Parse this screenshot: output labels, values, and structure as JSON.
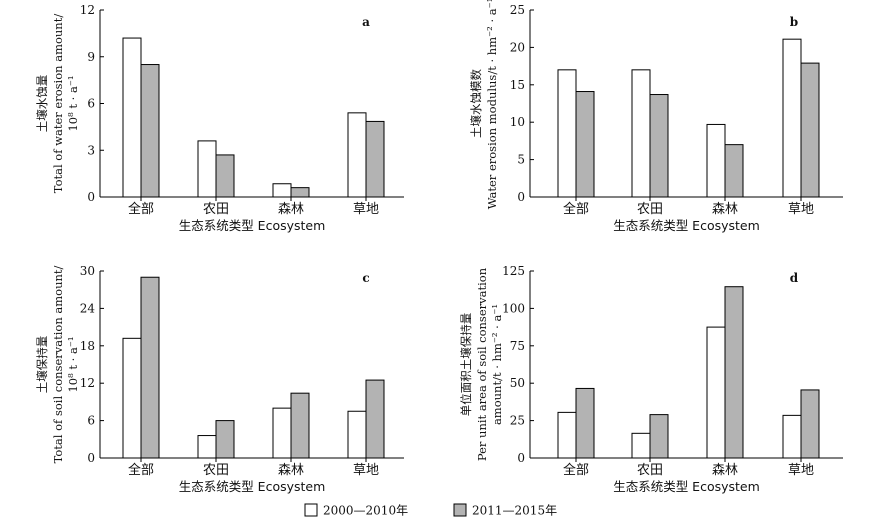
{
  "legend": [
    {
      "label": "2000—2010年",
      "color": "#ffffff"
    },
    {
      "label": "2011—2015年",
      "color": "#b3b3b3"
    }
  ],
  "chart_data": [
    {
      "type": "bar",
      "panel_label": "a",
      "categories": [
        "全部",
        "农田",
        "森林",
        "草地"
      ],
      "series": [
        {
          "name": "2000—2010年",
          "values": [
            10.2,
            3.6,
            0.85,
            5.4
          ]
        },
        {
          "name": "2011—2015年",
          "values": [
            8.5,
            2.7,
            0.6,
            4.85
          ]
        }
      ],
      "ylim": [
        0,
        12
      ],
      "yticks": [
        0,
        3,
        6,
        9,
        12
      ],
      "ylabel_lines": [
        "土壤水蚀量",
        "Total of water erosion amount/",
        "10⁸ t · a⁻¹"
      ],
      "xlabel": "生态系统类型 Ecosystem"
    },
    {
      "type": "bar",
      "panel_label": "b",
      "categories": [
        "全部",
        "农田",
        "森林",
        "草地"
      ],
      "series": [
        {
          "name": "2000—2010年",
          "values": [
            17.0,
            17.0,
            9.7,
            21.1
          ]
        },
        {
          "name": "2011—2015年",
          "values": [
            14.1,
            13.7,
            7.0,
            17.9
          ]
        }
      ],
      "ylim": [
        0,
        25
      ],
      "yticks": [
        0,
        5,
        10,
        15,
        20,
        25
      ],
      "ylabel_lines": [
        "土壤水蚀模数",
        "Water erosion modulus/t · hm⁻² · a⁻¹"
      ],
      "xlabel": "生态系统类型 Ecosystem"
    },
    {
      "type": "bar",
      "panel_label": "c",
      "categories": [
        "全部",
        "农田",
        "森林",
        "草地"
      ],
      "series": [
        {
          "name": "2000—2010年",
          "values": [
            19.2,
            3.6,
            8.0,
            7.5
          ]
        },
        {
          "name": "2011—2015年",
          "values": [
            29.0,
            6.0,
            10.4,
            12.5
          ]
        }
      ],
      "ylim": [
        0,
        30
      ],
      "yticks": [
        0,
        6,
        12,
        18,
        24,
        30
      ],
      "ylabel_lines": [
        "土壤保持量",
        "Total of soil conservation amount/",
        "10⁸ t · a⁻¹"
      ],
      "xlabel": "生态系统类型 Ecosystem"
    },
    {
      "type": "bar",
      "panel_label": "d",
      "categories": [
        "全部",
        "农田",
        "森林",
        "草地"
      ],
      "series": [
        {
          "name": "2000—2010年",
          "values": [
            30.5,
            16.5,
            87.5,
            28.5
          ]
        },
        {
          "name": "2011—2015年",
          "values": [
            46.5,
            29.0,
            114.5,
            45.5
          ]
        }
      ],
      "ylim": [
        0,
        125
      ],
      "yticks": [
        0,
        25,
        50,
        75,
        100,
        125
      ],
      "ylabel_lines": [
        "单位面积土壤保持量",
        "Per unit area of soil conservation",
        "amount/t · hm⁻² · a⁻¹"
      ],
      "xlabel": "生态系统类型 Ecosystem"
    }
  ]
}
